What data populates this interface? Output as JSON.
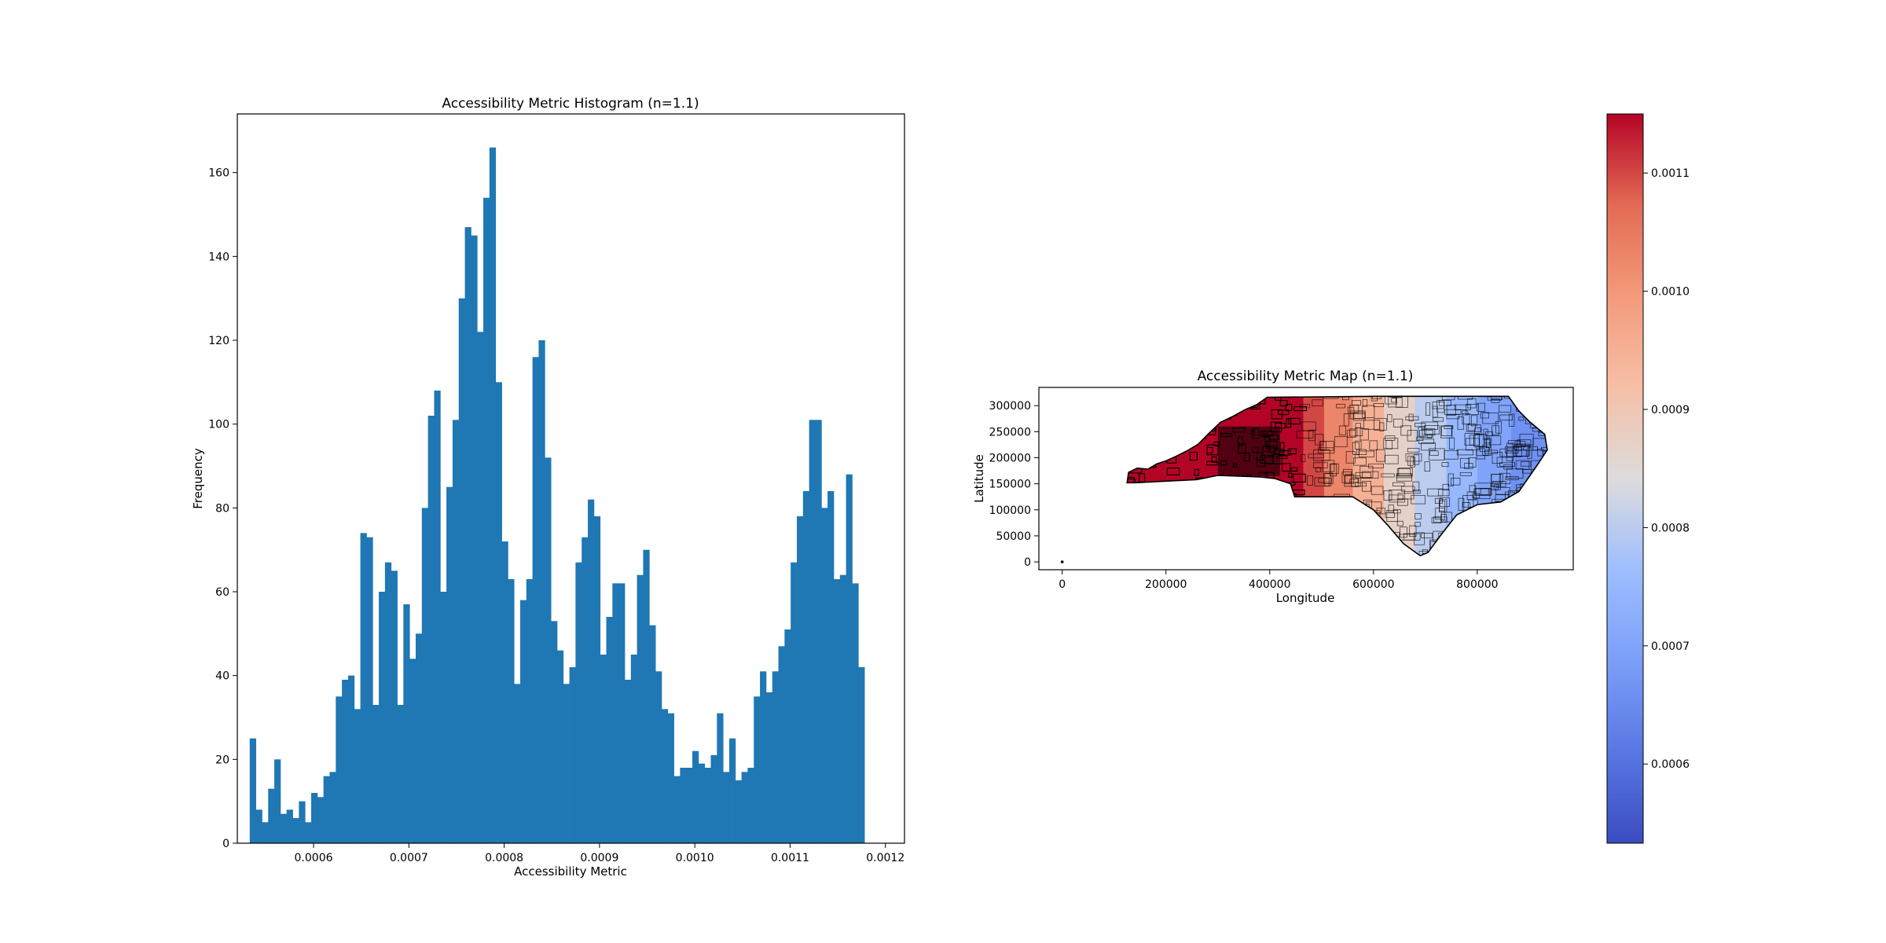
{
  "chart_data": [
    {
      "type": "bar",
      "title": "Accessibility Metric Histogram (n=1.1)",
      "xlabel": "Accessibility Metric",
      "ylabel": "Frequency",
      "xlim": [
        0.00052,
        0.00122
      ],
      "ylim": [
        0,
        174
      ],
      "bin_start": 0.000533,
      "bin_end": 0.001178,
      "xticks": [
        "0.0006",
        "0.0007",
        "0.0008",
        "0.0009",
        "0.0010",
        "0.0011",
        "0.0012"
      ],
      "yticks": [
        "0",
        "20",
        "40",
        "60",
        "80",
        "100",
        "120",
        "140",
        "160"
      ],
      "bar_color": "#1f77b4",
      "values": [
        25,
        8,
        5,
        13,
        20,
        7,
        8,
        6,
        10,
        5,
        12,
        11,
        16,
        17,
        35,
        39,
        40,
        32,
        74,
        73,
        33,
        60,
        67,
        65,
        33,
        57,
        44,
        50,
        80,
        102,
        108,
        60,
        85,
        101,
        130,
        147,
        145,
        122,
        154,
        166,
        110,
        72,
        63,
        38,
        58,
        63,
        116,
        120,
        92,
        53,
        46,
        38,
        42,
        67,
        73,
        82,
        78,
        45,
        54,
        62,
        62,
        39,
        45,
        64,
        70,
        52,
        41,
        32,
        31,
        16,
        18,
        18,
        22,
        19,
        18,
        21,
        31,
        17,
        25,
        15,
        17,
        18,
        35,
        41,
        36,
        41,
        47,
        51,
        67,
        78,
        84,
        101,
        101,
        80,
        84,
        63,
        64,
        88,
        62,
        42
      ]
    },
    {
      "type": "scatter",
      "title": "Accessibility Metric Map (n=1.1)",
      "xlabel": "Longitude",
      "ylabel": "Latitude",
      "xlim": [
        -45000,
        985000
      ],
      "ylim": [
        -15000,
        335000
      ],
      "xticks": [
        "0",
        "200000",
        "400000",
        "600000",
        "800000"
      ],
      "yticks": [
        "0",
        "50000",
        "100000",
        "150000",
        "200000",
        "250000",
        "300000"
      ],
      "colormap": "coolwarm",
      "colorbar": {
        "min": 0.000533,
        "max": 0.00115,
        "ticks": [
          "0.0006",
          "0.0007",
          "0.0008",
          "0.0009",
          "0.0010",
          "0.0011"
        ]
      },
      "outlier_point": [
        0,
        0
      ],
      "outline": [
        [
          125000,
          152000
        ],
        [
          128000,
          172000
        ],
        [
          145000,
          180000
        ],
        [
          165000,
          178000
        ],
        [
          182000,
          188000
        ],
        [
          200000,
          194000
        ],
        [
          220000,
          203000
        ],
        [
          240000,
          213000
        ],
        [
          262000,
          226000
        ],
        [
          282000,
          246000
        ],
        [
          305000,
          268000
        ],
        [
          330000,
          280000
        ],
        [
          352000,
          292000
        ],
        [
          375000,
          302000
        ],
        [
          395000,
          316000
        ],
        [
          605000,
          318000
        ],
        [
          800000,
          318000
        ],
        [
          860000,
          318000
        ],
        [
          880000,
          290000
        ],
        [
          900000,
          270000
        ],
        [
          930000,
          245000
        ],
        [
          935000,
          215000
        ],
        [
          915000,
          185000
        ],
        [
          880000,
          135000
        ],
        [
          845000,
          115000
        ],
        [
          800000,
          110000
        ],
        [
          760000,
          90000
        ],
        [
          730000,
          52000
        ],
        [
          705000,
          18000
        ],
        [
          690000,
          12000
        ],
        [
          658000,
          35000
        ],
        [
          628000,
          70000
        ],
        [
          600000,
          100000
        ],
        [
          560000,
          125000
        ],
        [
          490000,
          125000
        ],
        [
          448000,
          125000
        ],
        [
          440000,
          150000
        ],
        [
          410000,
          160000
        ],
        [
          382000,
          163000
        ],
        [
          300000,
          166000
        ],
        [
          260000,
          158000
        ],
        [
          200000,
          155000
        ],
        [
          140000,
          152000
        ],
        [
          125000,
          152000
        ]
      ],
      "color_bands": [
        {
          "from": 0.0,
          "to": 0.05,
          "value": 0.00115
        },
        {
          "from": 0.05,
          "to": 0.13,
          "value": 0.0011
        },
        {
          "from": 0.13,
          "to": 0.24,
          "value": 0.00103
        },
        {
          "from": 0.24,
          "to": 0.36,
          "value": 0.00095
        },
        {
          "from": 0.36,
          "to": 0.48,
          "value": 0.00087
        },
        {
          "from": 0.48,
          "to": 0.6,
          "value": 0.0008
        },
        {
          "from": 0.6,
          "to": 0.72,
          "value": 0.00075
        },
        {
          "from": 0.72,
          "to": 0.85,
          "value": 0.0007
        },
        {
          "from": 0.85,
          "to": 1.0,
          "value": 0.00066
        }
      ],
      "black_region": {
        "min_lon": 120000,
        "max_lon": 450000
      }
    }
  ]
}
